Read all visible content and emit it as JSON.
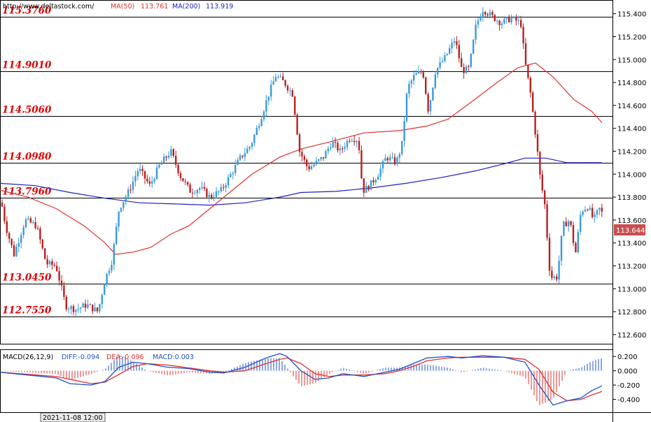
{
  "header": {
    "url": "http://www.deltastock.com/",
    "ma50_label": "MA(50)",
    "ma50_value": "113.761",
    "ma200_label": "MA(200)",
    "ma200_value": "113.919"
  },
  "colors": {
    "up_candle": "#3a9ad9",
    "down_candle": "#b82020",
    "ma50": "#e03030",
    "ma200": "#2020c0",
    "level_label": "#e00000",
    "price_badge": "#c85050",
    "macd_diff": "#1e50c8",
    "macd_dea": "#dd3030"
  },
  "current_price": "113.644",
  "bottom_timestamp": "2021-11-08 12:00",
  "macd": {
    "label": "MACD(26,12,9)",
    "diff_text": "DIFF:-0.094",
    "dea_text": "DEA:-0.096",
    "macd_text": "MACD:0.003"
  },
  "chart_data": [
    {
      "type": "candlestick",
      "title": "",
      "ylim": [
        112.52,
        115.52
      ],
      "y_ticks": [
        "115.400",
        "115.200",
        "115.000",
        "114.800",
        "114.600",
        "114.400",
        "114.200",
        "114.000",
        "113.800",
        "113.600",
        "113.400",
        "113.200",
        "113.000",
        "112.800",
        "112.600"
      ],
      "levels": [
        {
          "label": "115.3760",
          "value": 115.376
        },
        {
          "label": "114.9010",
          "value": 114.901
        },
        {
          "label": "114.5060",
          "value": 114.506
        },
        {
          "label": "114.0980",
          "value": 114.098
        },
        {
          "label": "113.7960",
          "value": 113.796
        },
        {
          "label": "113.0450",
          "value": 113.045
        },
        {
          "label": "112.7550",
          "value": 112.755
        }
      ],
      "path_points": [
        [
          0,
          113.82
        ],
        [
          8,
          113.55
        ],
        [
          20,
          113.3
        ],
        [
          36,
          113.6
        ],
        [
          52,
          113.55
        ],
        [
          66,
          113.22
        ],
        [
          80,
          113.2
        ],
        [
          94,
          112.85
        ],
        [
          108,
          112.82
        ],
        [
          124,
          112.86
        ],
        [
          140,
          112.8
        ],
        [
          150,
          113.08
        ],
        [
          160,
          113.25
        ],
        [
          170,
          113.7
        ],
        [
          184,
          113.85
        ],
        [
          198,
          114.05
        ],
        [
          214,
          113.9
        ],
        [
          228,
          114.08
        ],
        [
          244,
          114.2
        ],
        [
          258,
          113.98
        ],
        [
          272,
          113.85
        ],
        [
          286,
          113.88
        ],
        [
          300,
          113.8
        ],
        [
          316,
          113.86
        ],
        [
          330,
          114.0
        ],
        [
          344,
          114.15
        ],
        [
          358,
          114.25
        ],
        [
          372,
          114.48
        ],
        [
          384,
          114.7
        ],
        [
          394,
          114.86
        ],
        [
          406,
          114.8
        ],
        [
          418,
          114.7
        ],
        [
          428,
          114.2
        ],
        [
          440,
          114.05
        ],
        [
          452,
          114.1
        ],
        [
          462,
          114.15
        ],
        [
          474,
          114.28
        ],
        [
          486,
          114.2
        ],
        [
          500,
          114.32
        ],
        [
          512,
          114.3
        ],
        [
          518,
          113.85
        ],
        [
          528,
          113.9
        ],
        [
          540,
          114.0
        ],
        [
          552,
          114.15
        ],
        [
          566,
          114.1
        ],
        [
          574,
          114.25
        ],
        [
          582,
          114.75
        ],
        [
          592,
          114.86
        ],
        [
          604,
          114.9
        ],
        [
          612,
          114.55
        ],
        [
          622,
          114.9
        ],
        [
          636,
          115.02
        ],
        [
          650,
          115.18
        ],
        [
          660,
          114.9
        ],
        [
          670,
          114.92
        ],
        [
          680,
          115.3
        ],
        [
          690,
          115.44
        ],
        [
          702,
          115.38
        ],
        [
          716,
          115.32
        ],
        [
          730,
          115.36
        ],
        [
          744,
          115.32
        ],
        [
          750,
          114.98
        ],
        [
          758,
          114.7
        ],
        [
          766,
          114.3
        ],
        [
          772,
          113.95
        ],
        [
          778,
          113.75
        ],
        [
          786,
          113.1
        ],
        [
          796,
          113.1
        ],
        [
          804,
          113.55
        ],
        [
          814,
          113.6
        ],
        [
          822,
          113.3
        ],
        [
          830,
          113.68
        ],
        [
          840,
          113.72
        ],
        [
          848,
          113.6
        ],
        [
          856,
          113.7
        ],
        [
          862,
          113.64
        ]
      ],
      "ma50": [
        [
          0,
          113.86
        ],
        [
          40,
          113.8
        ],
        [
          80,
          113.7
        ],
        [
          120,
          113.55
        ],
        [
          150,
          113.4
        ],
        [
          165,
          113.3
        ],
        [
          190,
          113.32
        ],
        [
          215,
          113.36
        ],
        [
          245,
          113.48
        ],
        [
          270,
          113.55
        ],
        [
          300,
          113.7
        ],
        [
          330,
          113.85
        ],
        [
          360,
          114.0
        ],
        [
          400,
          114.15
        ],
        [
          430,
          114.22
        ],
        [
          470,
          114.28
        ],
        [
          520,
          114.36
        ],
        [
          570,
          114.38
        ],
        [
          610,
          114.42
        ],
        [
          640,
          114.48
        ],
        [
          680,
          114.66
        ],
        [
          710,
          114.8
        ],
        [
          740,
          114.93
        ],
        [
          765,
          114.97
        ],
        [
          790,
          114.85
        ],
        [
          820,
          114.65
        ],
        [
          845,
          114.55
        ],
        [
          860,
          114.45
        ]
      ],
      "ma200": [
        [
          0,
          113.92
        ],
        [
          50,
          113.9
        ],
        [
          100,
          113.84
        ],
        [
          150,
          113.79
        ],
        [
          200,
          113.75
        ],
        [
          250,
          113.74
        ],
        [
          300,
          113.73
        ],
        [
          350,
          113.75
        ],
        [
          400,
          113.8
        ],
        [
          430,
          113.84
        ],
        [
          480,
          113.85
        ],
        [
          530,
          113.88
        ],
        [
          580,
          113.92
        ],
        [
          630,
          113.97
        ],
        [
          680,
          114.03
        ],
        [
          720,
          114.09
        ],
        [
          750,
          114.14
        ],
        [
          780,
          114.14
        ],
        [
          810,
          114.1
        ],
        [
          860,
          114.1
        ]
      ]
    },
    {
      "type": "macd",
      "title": "",
      "ylim": [
        -0.58,
        0.3
      ],
      "y_ticks": [
        "0.200",
        "0.000",
        "-0.200",
        "-0.400"
      ],
      "diff": [
        [
          0,
          -0.02
        ],
        [
          40,
          -0.06
        ],
        [
          80,
          -0.1
        ],
        [
          100,
          -0.18
        ],
        [
          130,
          -0.2
        ],
        [
          150,
          -0.15
        ],
        [
          170,
          0.05
        ],
        [
          190,
          0.12
        ],
        [
          210,
          0.1
        ],
        [
          240,
          0.05
        ],
        [
          270,
          0.03
        ],
        [
          300,
          -0.02
        ],
        [
          320,
          -0.03
        ],
        [
          350,
          0.05
        ],
        [
          380,
          0.18
        ],
        [
          400,
          0.24
        ],
        [
          410,
          0.2
        ],
        [
          430,
          0.0
        ],
        [
          450,
          -0.12
        ],
        [
          470,
          -0.1
        ],
        [
          490,
          -0.04
        ],
        [
          520,
          -0.08
        ],
        [
          550,
          -0.02
        ],
        [
          570,
          0.02
        ],
        [
          590,
          0.1
        ],
        [
          610,
          0.18
        ],
        [
          640,
          0.2
        ],
        [
          660,
          0.18
        ],
        [
          690,
          0.21
        ],
        [
          720,
          0.19
        ],
        [
          750,
          0.12
        ],
        [
          770,
          -0.2
        ],
        [
          790,
          -0.48
        ],
        [
          810,
          -0.42
        ],
        [
          830,
          -0.38
        ],
        [
          845,
          -0.28
        ],
        [
          860,
          -0.21
        ]
      ],
      "dea": [
        [
          0,
          -0.02
        ],
        [
          40,
          -0.05
        ],
        [
          80,
          -0.08
        ],
        [
          100,
          -0.12
        ],
        [
          130,
          -0.18
        ],
        [
          150,
          -0.16
        ],
        [
          170,
          -0.05
        ],
        [
          190,
          0.06
        ],
        [
          210,
          0.1
        ],
        [
          240,
          0.08
        ],
        [
          270,
          0.04
        ],
        [
          300,
          0.0
        ],
        [
          320,
          -0.02
        ],
        [
          350,
          0.0
        ],
        [
          380,
          0.1
        ],
        [
          400,
          0.16
        ],
        [
          410,
          0.18
        ],
        [
          430,
          0.1
        ],
        [
          450,
          -0.04
        ],
        [
          470,
          -0.08
        ],
        [
          490,
          -0.06
        ],
        [
          520,
          -0.06
        ],
        [
          550,
          -0.04
        ],
        [
          570,
          0.0
        ],
        [
          590,
          0.06
        ],
        [
          610,
          0.14
        ],
        [
          640,
          0.18
        ],
        [
          660,
          0.19
        ],
        [
          690,
          0.19
        ],
        [
          720,
          0.19
        ],
        [
          750,
          0.16
        ],
        [
          770,
          0.02
        ],
        [
          790,
          -0.3
        ],
        [
          810,
          -0.42
        ],
        [
          830,
          -0.4
        ],
        [
          845,
          -0.34
        ],
        [
          860,
          -0.29
        ]
      ]
    }
  ]
}
